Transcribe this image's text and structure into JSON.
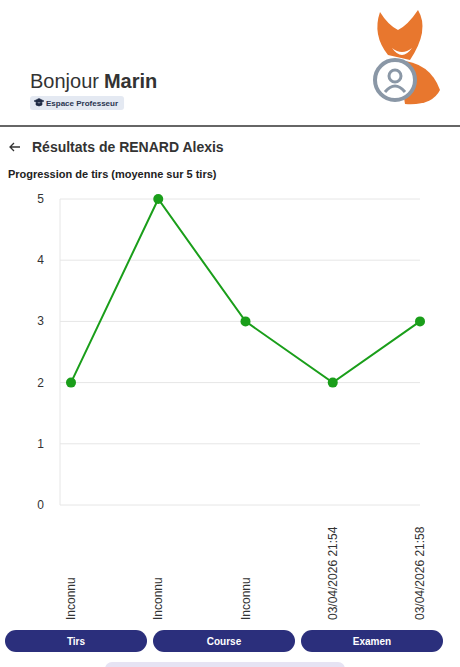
{
  "header": {
    "greeting": "Bonjour",
    "user": "Marin",
    "badge": "Espace Professeur"
  },
  "page_title": "Résultats de RENARD Alexis",
  "chart_data": {
    "type": "line",
    "title": "Progression de tirs (moyenne sur 5 tirs)",
    "categories": [
      "Inconnu",
      "Inconnu",
      "Inconnu",
      "03/04/2026 21:54",
      "03/04/2026 21:58"
    ],
    "values": [
      2,
      5,
      3,
      2,
      3
    ],
    "color": "#1a9e1a",
    "marker": "circle",
    "ylim": [
      0,
      5
    ],
    "yticks": [
      0,
      1,
      2,
      3,
      4,
      5
    ],
    "grid": true
  },
  "buttons": [
    "Tirs",
    "Course",
    "Examen"
  ]
}
